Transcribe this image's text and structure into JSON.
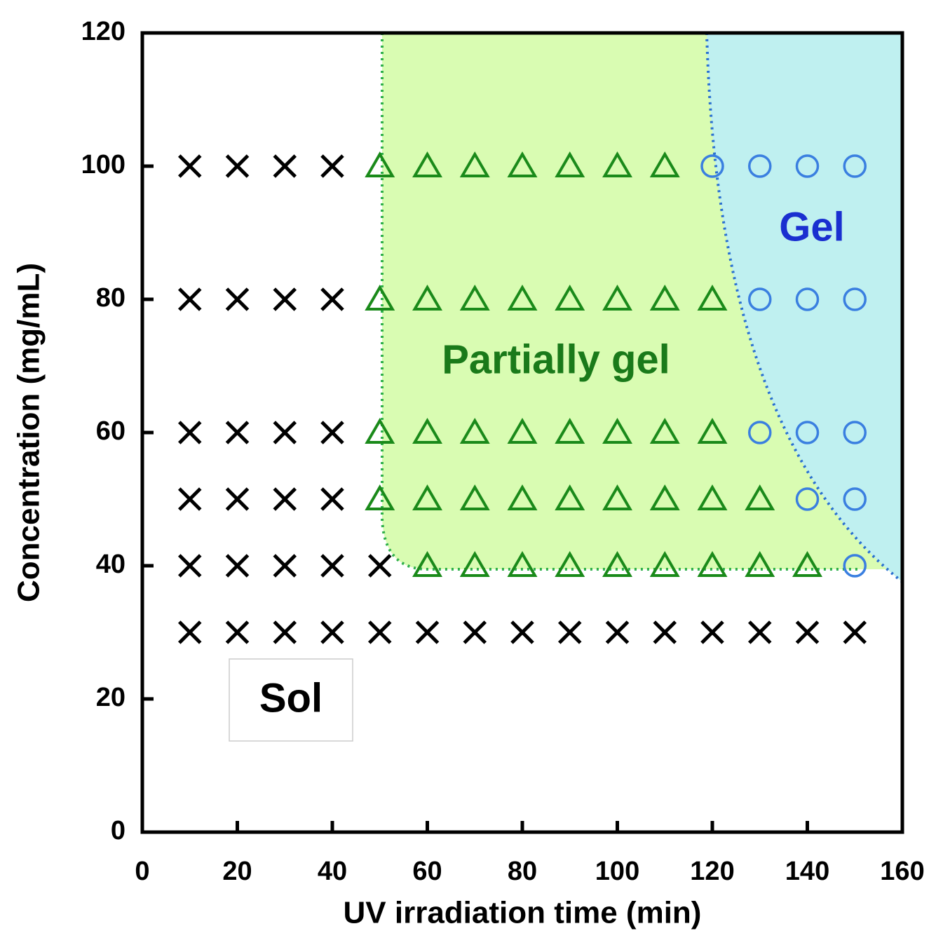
{
  "chart_data": {
    "type": "scatter",
    "x_label": "UV irradiation time (min)",
    "y_label": "Concentration (mg/mL)",
    "xlim": [
      0,
      160
    ],
    "xticks": [
      0,
      20,
      40,
      60,
      80,
      100,
      120,
      140,
      160
    ],
    "ylim": [
      0,
      120
    ],
    "yticks": [
      0,
      20,
      40,
      60,
      80,
      100,
      120
    ],
    "series": [
      {
        "name": "Sol",
        "marker": "x",
        "color": "#000000",
        "x": [
          10,
          20,
          30,
          40,
          10,
          20,
          30,
          40,
          10,
          20,
          30,
          40,
          10,
          20,
          30,
          40,
          10,
          20,
          30,
          40,
          50,
          10,
          20,
          30,
          40,
          50,
          60,
          70,
          80,
          90,
          100,
          110,
          120,
          130,
          140,
          150
        ],
        "y": [
          100,
          100,
          100,
          100,
          80,
          80,
          80,
          80,
          60,
          60,
          60,
          60,
          50,
          50,
          50,
          50,
          40,
          40,
          40,
          40,
          40,
          30,
          30,
          30,
          30,
          30,
          30,
          30,
          30,
          30,
          30,
          30,
          30,
          30,
          30,
          30
        ]
      },
      {
        "name": "Partially gel",
        "marker": "triangle",
        "color": "#1a8a1a",
        "x": [
          50,
          60,
          70,
          80,
          90,
          100,
          110,
          50,
          60,
          70,
          80,
          90,
          100,
          110,
          120,
          50,
          60,
          70,
          80,
          90,
          100,
          110,
          120,
          50,
          60,
          70,
          80,
          90,
          100,
          110,
          120,
          130,
          60,
          70,
          80,
          90,
          100,
          110,
          120,
          130,
          140
        ],
        "y": [
          100,
          100,
          100,
          100,
          100,
          100,
          100,
          80,
          80,
          80,
          80,
          80,
          80,
          80,
          80,
          60,
          60,
          60,
          60,
          60,
          60,
          60,
          60,
          50,
          50,
          50,
          50,
          50,
          50,
          50,
          50,
          50,
          40,
          40,
          40,
          40,
          40,
          40,
          40,
          40,
          40
        ]
      },
      {
        "name": "Gel",
        "marker": "circle",
        "color": "#3a7fe0",
        "x": [
          120,
          130,
          140,
          150,
          130,
          140,
          150,
          130,
          140,
          150,
          140,
          150,
          150
        ],
        "y": [
          100,
          100,
          100,
          100,
          80,
          80,
          80,
          60,
          60,
          60,
          50,
          50,
          40
        ]
      }
    ]
  }
}
